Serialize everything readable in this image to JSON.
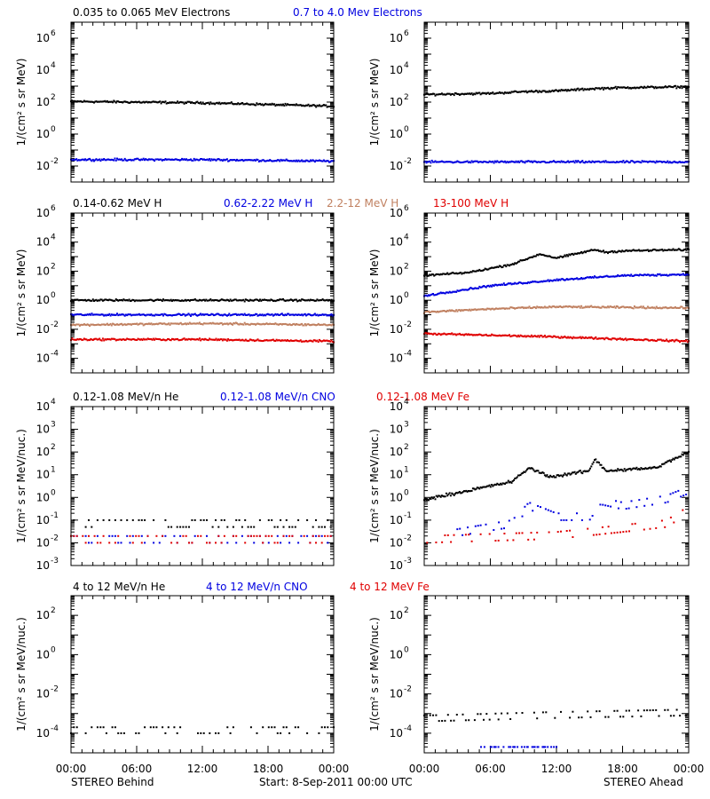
{
  "figure": {
    "footer": {
      "left": "STEREO Behind",
      "center": "Start:  8-Sep-2011 00:00 UTC",
      "right": "STEREO Ahead"
    },
    "time_ticks": [
      "00:00",
      "06:00",
      "12:00",
      "18:00",
      "00:00"
    ]
  },
  "rows": [
    {
      "ylabel": "1/(cm² s sr MeV)",
      "legend": [
        {
          "label": "0.035 to 0.065 MeV Electrons",
          "color": "#000000"
        },
        {
          "label": "0.7 to 4.0 Mev Electrons",
          "color": "#0000e0"
        }
      ],
      "ytick_exp": [
        "-2",
        "0",
        "2",
        "4",
        "6"
      ]
    },
    {
      "ylabel": "1/(cm² s sr MeV)",
      "legend": [
        {
          "label": "0.14-0.62 MeV H",
          "color": "#000000"
        },
        {
          "label": "0.62-2.22 MeV H",
          "color": "#0000e0"
        },
        {
          "label": "2.2-12 MeV H",
          "color": "#c08060"
        },
        {
          "label": "13-100 MeV H",
          "color": "#e00000"
        }
      ],
      "ytick_exp": [
        "-4",
        "-2",
        "0",
        "2",
        "4",
        "6"
      ]
    },
    {
      "ylabel": "1/(cm² s sr MeV/nuc.)",
      "legend": [
        {
          "label": "0.12-1.08 MeV/n He",
          "color": "#000000"
        },
        {
          "label": "0.12-1.08 MeV/n CNO",
          "color": "#0000e0"
        },
        {
          "label": "0.12-1.08 MeV Fe",
          "color": "#e00000"
        }
      ],
      "ytick_exp": [
        "-3",
        "-2",
        "-1",
        "0",
        "1",
        "2",
        "3",
        "4"
      ]
    },
    {
      "ylabel": "1/(cm² s sr MeV/nuc.)",
      "legend": [
        {
          "label": "4 to 12 MeV/n He",
          "color": "#000000"
        },
        {
          "label": "4 to 12 MeV/n CNO",
          "color": "#0000e0"
        },
        {
          "label": "4 to 12 MeV Fe",
          "color": "#e00000"
        }
      ],
      "ytick_exp": [
        "-4",
        "-2",
        "0",
        "2"
      ]
    }
  ],
  "chart_data": [
    {
      "type": "scatter",
      "panel": "electrons-behind",
      "ylim": [
        0.001,
        10000000
      ],
      "log_y": true,
      "x_hours": [
        0,
        24
      ],
      "series": [
        {
          "name": "0.035 to 0.065 MeV Electrons",
          "color": "#000000",
          "points": [
            [
              0,
              110
            ],
            [
              12,
              90
            ],
            [
              24,
              55
            ]
          ]
        },
        {
          "name": "0.7 to 4.0 Mev Electrons",
          "color": "#0000e0",
          "points": [
            [
              0,
              0.025
            ],
            [
              12,
              0.025
            ],
            [
              24,
              0.02
            ]
          ]
        }
      ]
    },
    {
      "type": "scatter",
      "panel": "electrons-ahead",
      "ylim": [
        0.001,
        10000000
      ],
      "log_y": true,
      "x_hours": [
        0,
        24
      ],
      "series": [
        {
          "name": "0.035 to 0.065 MeV Electrons",
          "color": "#000000",
          "points": [
            [
              0,
              300
            ],
            [
              6,
              350
            ],
            [
              9,
              450
            ],
            [
              12,
              500
            ],
            [
              15.5,
              700
            ],
            [
              18,
              800
            ],
            [
              24,
              900
            ]
          ]
        },
        {
          "name": "0.7 to 4.0 Mev Electrons",
          "color": "#0000e0",
          "points": [
            [
              0,
              0.018
            ],
            [
              12,
              0.018
            ],
            [
              24,
              0.018
            ]
          ]
        }
      ]
    },
    {
      "type": "scatter",
      "panel": "protons-behind",
      "ylim": [
        1e-05,
        1000000
      ],
      "log_y": true,
      "x_hours": [
        0,
        24
      ],
      "series": [
        {
          "name": "0.14-0.62 MeV H",
          "color": "#000000",
          "points": [
            [
              0,
              1.0
            ],
            [
              12,
              1.0
            ],
            [
              24,
              1.0
            ]
          ]
        },
        {
          "name": "0.62-2.22 MeV H",
          "color": "#0000e0",
          "points": [
            [
              0,
              0.1
            ],
            [
              12,
              0.1
            ],
            [
              24,
              0.1
            ]
          ]
        },
        {
          "name": "2.2-12 MeV H",
          "color": "#c08060",
          "points": [
            [
              0,
              0.02
            ],
            [
              12,
              0.025
            ],
            [
              24,
              0.02
            ]
          ]
        },
        {
          "name": "13-100 MeV H",
          "color": "#e00000",
          "points": [
            [
              0,
              0.002
            ],
            [
              12,
              0.002
            ],
            [
              24,
              0.0015
            ]
          ]
        }
      ]
    },
    {
      "type": "scatter",
      "panel": "protons-ahead",
      "ylim": [
        1e-05,
        1000000
      ],
      "log_y": true,
      "x_hours": [
        0,
        24
      ],
      "series": [
        {
          "name": "0.14-0.62 MeV H",
          "color": "#000000",
          "points": [
            [
              0,
              50
            ],
            [
              4,
              80
            ],
            [
              8,
              300
            ],
            [
              10.5,
              1500
            ],
            [
              12,
              800
            ],
            [
              15.5,
              3000
            ],
            [
              16.5,
              2000
            ],
            [
              18,
              2500
            ],
            [
              24,
              3000
            ]
          ]
        },
        {
          "name": "0.62-2.22 MeV H",
          "color": "#0000e0",
          "points": [
            [
              0,
              2
            ],
            [
              6,
              10
            ],
            [
              12,
              25
            ],
            [
              18,
              50
            ],
            [
              24,
              60
            ]
          ]
        },
        {
          "name": "2.2-12 MeV H",
          "color": "#c08060",
          "points": [
            [
              0,
              0.15
            ],
            [
              6,
              0.25
            ],
            [
              12,
              0.35
            ],
            [
              24,
              0.3
            ]
          ]
        },
        {
          "name": "13-100 MeV H",
          "color": "#e00000",
          "points": [
            [
              0,
              0.005
            ],
            [
              12,
              0.003
            ],
            [
              24,
              0.0015
            ]
          ]
        }
      ]
    },
    {
      "type": "scatter",
      "panel": "heavy-low-behind",
      "ylim": [
        0.001,
        10000
      ],
      "log_y": true,
      "x_hours": [
        0,
        24
      ],
      "series": [
        {
          "name": "0.12-1.08 MeV/n He",
          "color": "#000000",
          "points": [
            [
              0,
              0.05
            ],
            [
              12,
              0.05
            ],
            [
              24,
              0.05
            ]
          ]
        },
        {
          "name": "0.12-1.08 MeV/n CNO",
          "color": "#0000e0",
          "points": [
            [
              0,
              0.01
            ],
            [
              24,
              0.01
            ]
          ]
        },
        {
          "name": "0.12-1.08 MeV Fe",
          "color": "#e00000",
          "points": [
            [
              0,
              0.01
            ],
            [
              24,
              0.01
            ]
          ]
        }
      ]
    },
    {
      "type": "scatter",
      "panel": "heavy-low-ahead",
      "ylim": [
        0.001,
        10000
      ],
      "log_y": true,
      "x_hours": [
        0,
        24
      ],
      "series": [
        {
          "name": "0.12-1.08 MeV/n He",
          "color": "#000000",
          "points": [
            [
              0,
              0.8
            ],
            [
              4,
              2
            ],
            [
              8,
              5
            ],
            [
              9.5,
              20
            ],
            [
              11.5,
              8
            ],
            [
              15,
              15
            ],
            [
              15.5,
              50
            ],
            [
              16.5,
              15
            ],
            [
              21,
              20
            ],
            [
              24,
              100
            ]
          ]
        },
        {
          "name": "0.12-1.08 MeV/n CNO",
          "color": "#0000e0",
          "points": [
            [
              3,
              0.02
            ],
            [
              8,
              0.05
            ],
            [
              9.5,
              0.3
            ],
            [
              12,
              0.1
            ],
            [
              15,
              0.1
            ],
            [
              16,
              0.5
            ],
            [
              18,
              0.3
            ],
            [
              22,
              0.6
            ],
            [
              24,
              1.5
            ]
          ]
        },
        {
          "name": "0.12-1.08 MeV Fe",
          "color": "#e00000",
          "points": [
            [
              0,
              0.01
            ],
            [
              12,
              0.015
            ],
            [
              18,
              0.03
            ],
            [
              22,
              0.05
            ],
            [
              24,
              0.2
            ]
          ]
        }
      ]
    },
    {
      "type": "scatter",
      "panel": "heavy-high-behind",
      "ylim": [
        1e-05,
        1000
      ],
      "log_y": true,
      "x_hours": [
        0,
        24
      ],
      "series": [
        {
          "name": "4 to 12 MeV/n He",
          "color": "#000000",
          "points": [
            [
              0,
              0.0001
            ],
            [
              24,
              0.0001
            ]
          ]
        },
        {
          "name": "4 to 12 MeV/n CNO",
          "color": "#0000e0",
          "points": []
        },
        {
          "name": "4 to 12 MeV Fe",
          "color": "#e00000",
          "points": []
        }
      ]
    },
    {
      "type": "scatter",
      "panel": "heavy-high-ahead",
      "ylim": [
        1e-05,
        1000
      ],
      "log_y": true,
      "x_hours": [
        0,
        24
      ],
      "series": [
        {
          "name": "4 to 12 MeV/n He",
          "color": "#000000",
          "points": [
            [
              0,
              0.0004
            ],
            [
              12,
              0.0006
            ],
            [
              24,
              0.0008
            ]
          ]
        },
        {
          "name": "4 to 12 MeV/n CNO",
          "color": "#0000e0",
          "points": [
            [
              5,
              1e-05
            ],
            [
              12,
              1e-05
            ]
          ]
        },
        {
          "name": "4 to 12 MeV Fe",
          "color": "#e00000",
          "points": []
        }
      ]
    }
  ]
}
